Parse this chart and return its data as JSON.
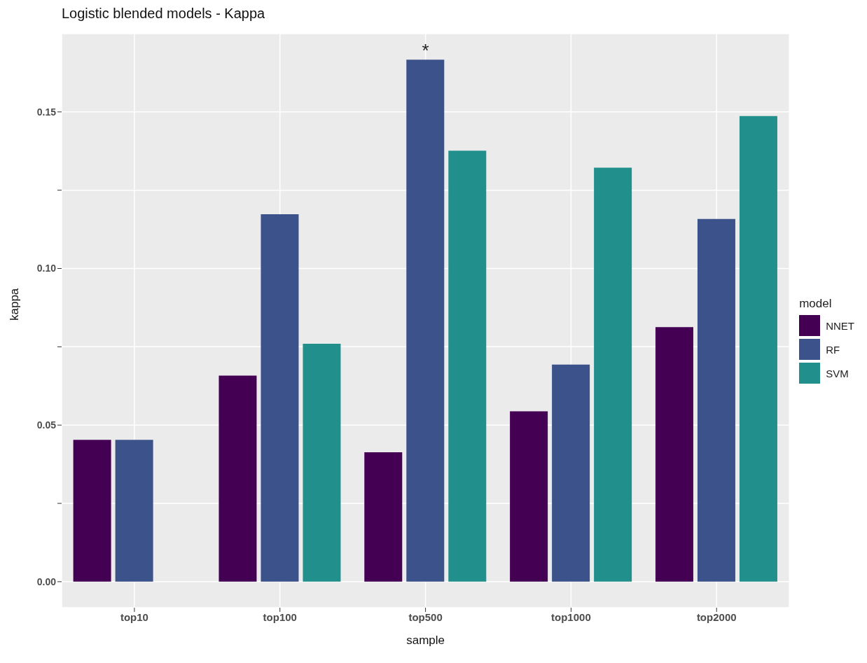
{
  "chart_data": {
    "type": "bar",
    "title": "Logistic blended models - Kappa",
    "xlabel": "sample",
    "ylabel": "kappa",
    "legend_title": "model",
    "categories": [
      "top10",
      "top100",
      "top500",
      "top1000",
      "top2000"
    ],
    "series": [
      {
        "name": "NNET",
        "color": "#440154",
        "values": [
          0.0453,
          0.0658,
          0.0413,
          0.0544,
          0.0813
        ]
      },
      {
        "name": "RF",
        "color": "#3b528b",
        "values": [
          0.0453,
          0.1173,
          0.1667,
          0.0693,
          0.1158
        ]
      },
      {
        "name": "SVM",
        "color": "#21908c",
        "values": [
          null,
          0.076,
          0.1376,
          0.1322,
          0.1487
        ]
      }
    ],
    "ylim": [
      -0.0083,
      0.175
    ],
    "yticks": [
      {
        "value": 0,
        "label": "0.00"
      },
      {
        "value": 0.025,
        "label": null
      },
      {
        "value": 0.05,
        "label": "0.05"
      },
      {
        "value": 0.075,
        "label": null
      },
      {
        "value": 0.1,
        "label": "0.10"
      },
      {
        "value": 0.125,
        "label": null
      },
      {
        "value": 0.15,
        "label": "0.15"
      }
    ],
    "annotations": [
      {
        "text": "*",
        "x": "top500",
        "y": 0.1667
      }
    ],
    "grid": true,
    "legend": "right"
  }
}
